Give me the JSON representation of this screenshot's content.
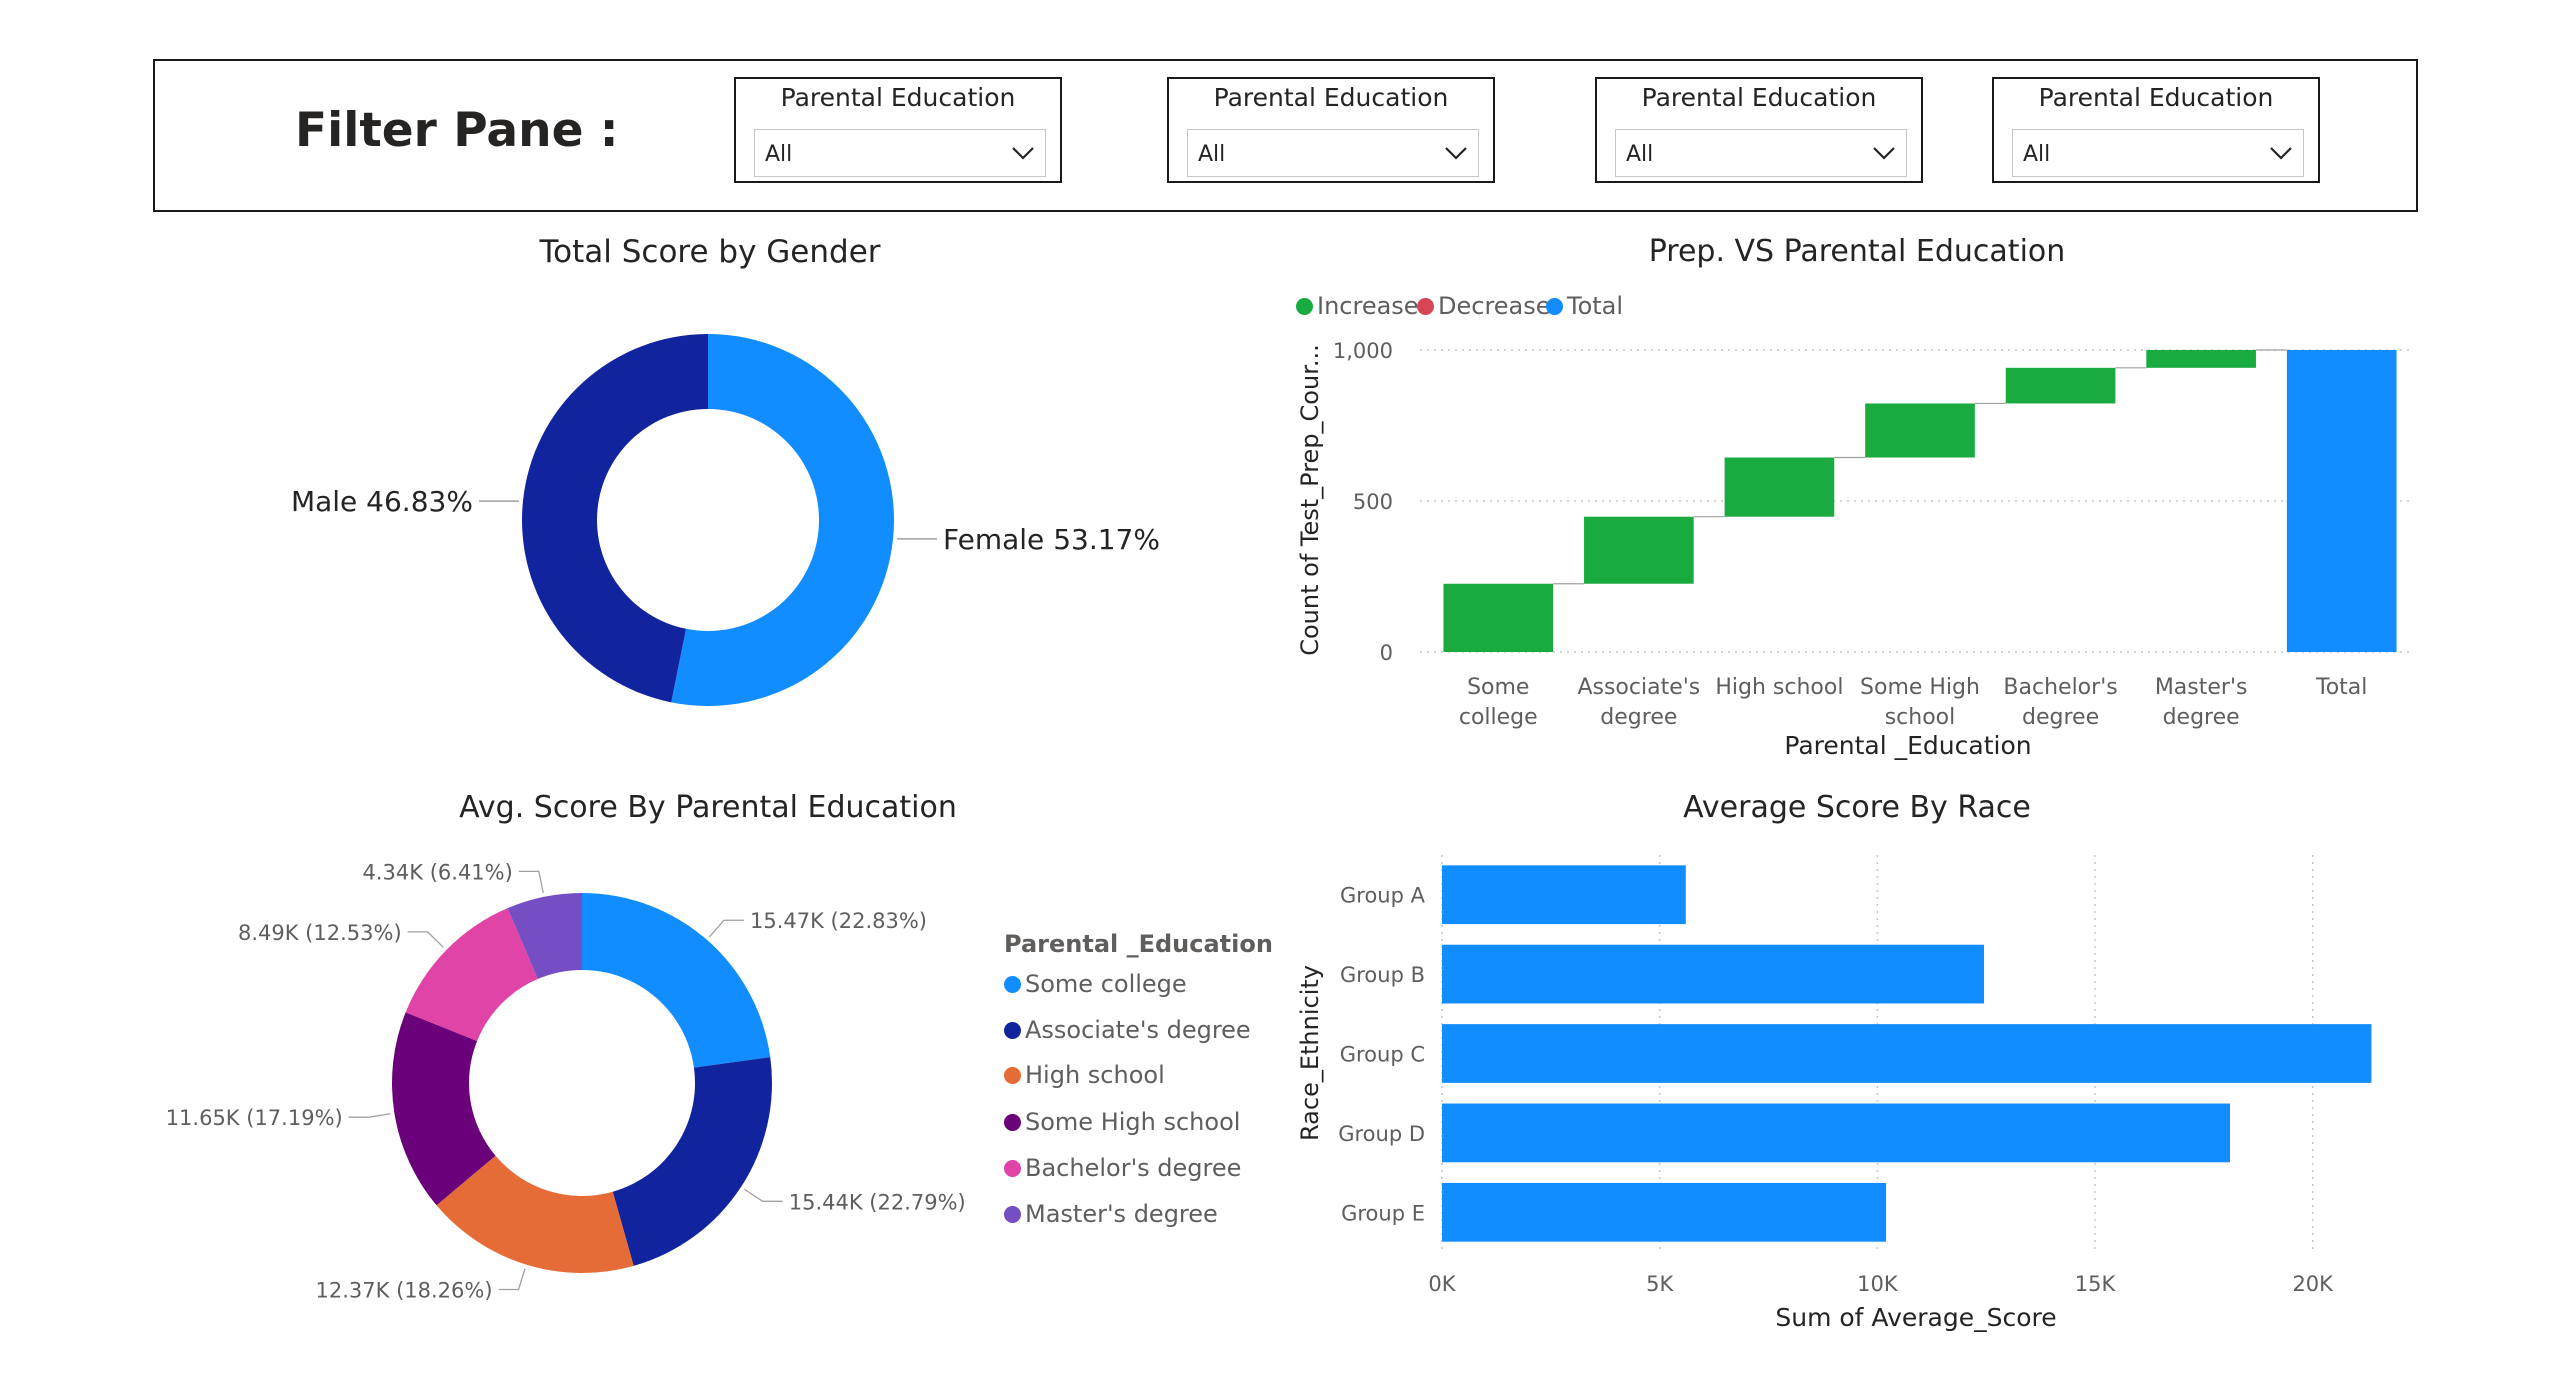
{
  "filter_pane": {
    "title": "Filter Pane :",
    "slicers": [
      {
        "label": "Parental Education",
        "value": "All"
      },
      {
        "label": "Parental Education",
        "value": "All"
      },
      {
        "label": "Parental Education",
        "value": "All"
      },
      {
        "label": "Parental Education",
        "value": "All"
      }
    ]
  },
  "colors": {
    "light_blue": "#118DFF",
    "dark_blue": "#12239E",
    "orange": "#E66C37",
    "purple": "#6B007B",
    "pink": "#E044A7",
    "violet": "#744EC2",
    "increase": "#1AAB40",
    "decrease": "#D64554",
    "total": "#118DFF"
  },
  "chart_data": [
    {
      "id": "gender",
      "type": "pie",
      "title": "Total Score by Gender",
      "slices": [
        {
          "label": "Female",
          "value": 53.17,
          "data_label": "Female 53.17%",
          "color": "#118DFF"
        },
        {
          "label": "Male",
          "value": 46.83,
          "data_label": "Male 46.83%",
          "color": "#12239E"
        }
      ]
    },
    {
      "id": "waterfall",
      "type": "bar",
      "subtype": "waterfall",
      "title": "Prep. VS Parental Education",
      "legend": [
        {
          "label": "Increase",
          "color": "#1AAB40"
        },
        {
          "label": "Decrease",
          "color": "#D64554"
        },
        {
          "label": "Total",
          "color": "#118DFF"
        }
      ],
      "legend_position": "top-left",
      "xlabel": "Parental _Education",
      "ylabel": "Count of Test_Prep_Cour...",
      "ylim": [
        0,
        1000
      ],
      "yticks": [
        0,
        500,
        1000
      ],
      "ytick_labels": [
        "0",
        "500",
        "1,000"
      ],
      "categories": [
        [
          "Some",
          "college"
        ],
        [
          "Associate's",
          "degree"
        ],
        [
          "High school"
        ],
        [
          "Some High",
          "school"
        ],
        [
          "Bachelor's",
          "degree"
        ],
        [
          "Master's",
          "degree"
        ],
        [
          "Total"
        ]
      ],
      "values": [
        226,
        222,
        196,
        179,
        118,
        59,
        1000
      ],
      "bar_kinds": [
        "increase",
        "increase",
        "increase",
        "increase",
        "increase",
        "increase",
        "total"
      ],
      "grid": true
    },
    {
      "id": "parental",
      "type": "pie",
      "title": "Avg. Score By Parental Education",
      "legend_title": "Parental _Education",
      "slices": [
        {
          "label": "Some college",
          "value": 15.47,
          "data_label": "15.47K (22.83%)",
          "color": "#118DFF"
        },
        {
          "label": "Associate's degree",
          "value": 15.44,
          "data_label": "15.44K (22.79%)",
          "color": "#12239E"
        },
        {
          "label": "High school",
          "value": 12.37,
          "data_label": "12.37K (18.26%)",
          "color": "#E66C37"
        },
        {
          "label": "Some High school",
          "value": 11.65,
          "data_label": "11.65K (17.19%)",
          "color": "#6B007B"
        },
        {
          "label": "Bachelor's degree",
          "value": 8.49,
          "data_label": "8.49K (12.53%)",
          "color": "#E044A7"
        },
        {
          "label": "Master's degree",
          "value": 4.34,
          "data_label": "4.34K (6.41%)",
          "color": "#744EC2"
        }
      ]
    },
    {
      "id": "race",
      "type": "bar",
      "orientation": "horizontal",
      "title": "Average Score By Race",
      "xlabel": "Sum of Average_Score",
      "ylabel": "Race_Ethnicity",
      "categories": [
        "Group A",
        "Group B",
        "Group C",
        "Group D",
        "Group E"
      ],
      "values": [
        5600,
        12450,
        21350,
        18100,
        10200
      ],
      "xlim": [
        0,
        21500
      ],
      "xticks": [
        0,
        5000,
        10000,
        15000,
        20000
      ],
      "xtick_labels": [
        "0K",
        "5K",
        "10K",
        "15K",
        "20K"
      ],
      "color": "#118DFF",
      "grid": true
    }
  ]
}
